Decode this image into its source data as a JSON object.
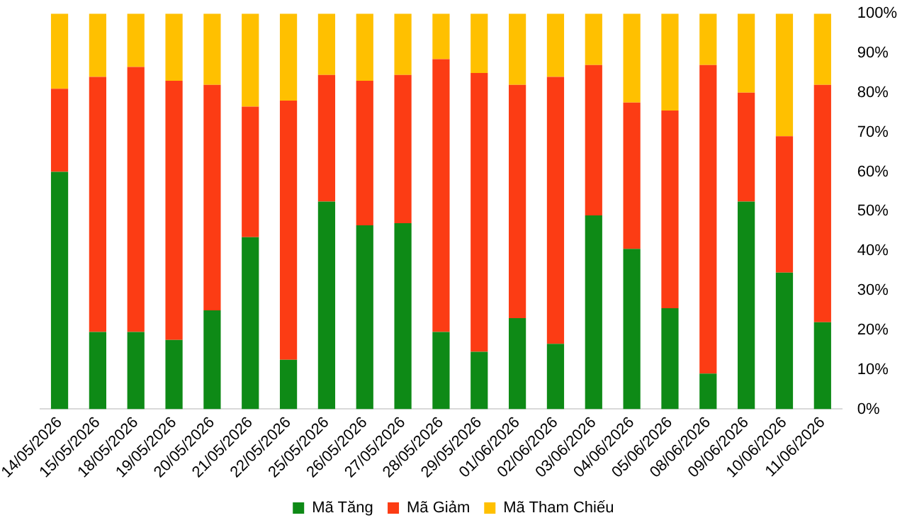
{
  "chart_data": {
    "type": "bar",
    "stacked": true,
    "categories": [
      "14/05/2026",
      "15/05/2026",
      "18/05/2026",
      "19/05/2026",
      "20/05/2026",
      "21/05/2026",
      "22/05/2026",
      "25/05/2026",
      "26/05/2026",
      "27/05/2026",
      "28/05/2026",
      "29/05/2026",
      "01/06/2026",
      "02/06/2026",
      "03/06/2026",
      "04/06/2026",
      "05/06/2026",
      "08/06/2026",
      "09/06/2026",
      "10/06/2026",
      "11/06/2026"
    ],
    "series": [
      {
        "name": "Mã Tăng",
        "color": "#0e8a16",
        "values": [
          60,
          19.5,
          19.5,
          17.5,
          25,
          43.5,
          12.5,
          52.5,
          46.5,
          47,
          19.5,
          14.5,
          23,
          16.5,
          49,
          40.5,
          25.5,
          9,
          52.5,
          34.5,
          22
        ]
      },
      {
        "name": "Mã Giảm",
        "color": "#fc3c14",
        "values": [
          21,
          64.5,
          67,
          65.5,
          57,
          33,
          65.5,
          32,
          36.5,
          37.5,
          69,
          70.5,
          59,
          67.5,
          38,
          37,
          50,
          78,
          27.5,
          34.5,
          60
        ]
      },
      {
        "name": "Mã Tham Chiếu",
        "color": "#ffc000",
        "values": [
          19,
          16,
          13.5,
          17,
          18,
          23.5,
          22,
          15.5,
          17,
          15.5,
          11.5,
          15,
          18,
          16,
          13,
          22.5,
          24.5,
          13,
          20,
          31,
          18
        ]
      }
    ],
    "ylim": [
      0,
      100
    ],
    "yticks": [
      {
        "value": 0,
        "label": "0%"
      },
      {
        "value": 10,
        "label": "10%"
      },
      {
        "value": 20,
        "label": "20%"
      },
      {
        "value": 30,
        "label": "30%"
      },
      {
        "value": 40,
        "label": "40%"
      },
      {
        "value": 50,
        "label": "50%"
      },
      {
        "value": 60,
        "label": "60%"
      },
      {
        "value": 70,
        "label": "70%"
      },
      {
        "value": 80,
        "label": "80%"
      },
      {
        "value": 90,
        "label": "90%"
      },
      {
        "value": 100,
        "label": "100%"
      }
    ],
    "grid": false,
    "legend": "bottom"
  }
}
